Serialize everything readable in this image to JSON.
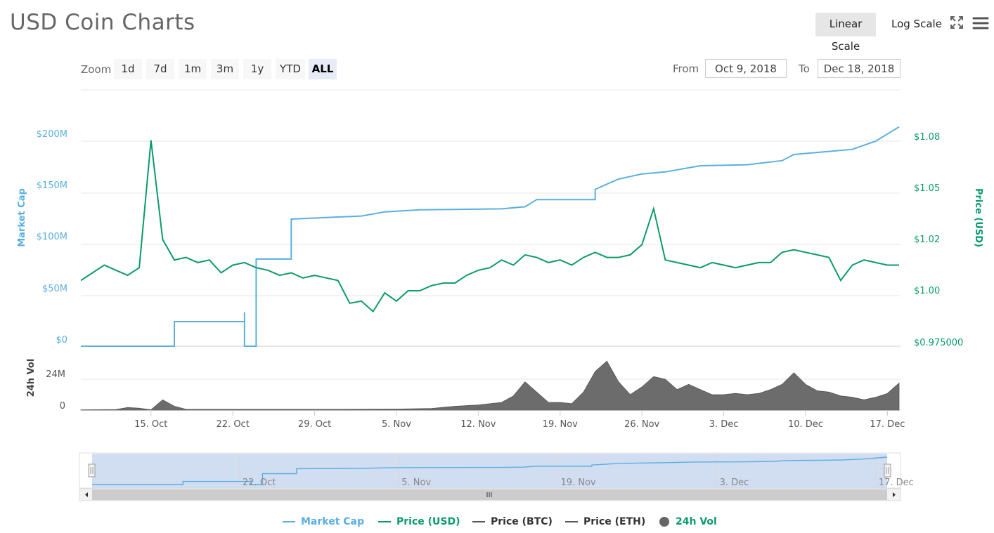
{
  "header": {
    "title": "USD Coin Charts",
    "linear_scale": "Linear Scale",
    "log_scale": "Log Scale",
    "fullscreen_icon": "fullscreen-icon",
    "menu_icon": "hamburger-menu-icon"
  },
  "zoom": {
    "label": "Zoom",
    "buttons": [
      "1d",
      "7d",
      "1m",
      "3m",
      "1y",
      "YTD",
      "ALL"
    ],
    "active": "ALL"
  },
  "range": {
    "from_label": "From",
    "from_value": "Oct 9, 2018",
    "to_label": "To",
    "to_value": "Dec 18, 2018"
  },
  "colors": {
    "market_cap": "#5aafe0",
    "price_usd": "#0b9a6d",
    "volume": "#6c6c6c",
    "price_other": "#555555",
    "navigator_fill": "#c9d7ee"
  },
  "legend": [
    {
      "name": "Market Cap",
      "color": "#5aafe0",
      "kind": "line"
    },
    {
      "name": "Price (USD)",
      "color": "#0b9a6d",
      "kind": "line"
    },
    {
      "name": "Price (BTC)",
      "color": "#555555",
      "kind": "line"
    },
    {
      "name": "Price (ETH)",
      "color": "#555555",
      "kind": "line"
    },
    {
      "name": "24h Vol",
      "color": "#666666",
      "kind": "dot"
    }
  ],
  "chart_data": {
    "type": "line",
    "x_ticks": [
      "15. Oct",
      "22. Oct",
      "29. Oct",
      "5. Nov",
      "12. Nov",
      "19. Nov",
      "26. Nov",
      "3. Dec",
      "10. Dec",
      "17. Dec"
    ],
    "navigator_ticks": [
      "22. Oct",
      "5. Nov",
      "19. Nov",
      "3. Dec",
      "17. Dec"
    ],
    "x_range": [
      "2018-10-09",
      "2018-12-18"
    ],
    "left_axis": {
      "label": "Market Cap",
      "ticks": [
        "$0",
        "$50M",
        "$100M",
        "$150M",
        "$200M"
      ],
      "ylim_millions": [
        0,
        200
      ]
    },
    "right_axis": {
      "label": "Price (USD)",
      "ticks": [
        "$0.975000",
        "$1.00",
        "$1.02",
        "$1.05",
        "$1.08"
      ],
      "ylim": [
        0.975,
        1.08
      ]
    },
    "volume_axis": {
      "label": "24h Vol",
      "ticks": [
        "0",
        "24M"
      ],
      "ylim_millions": [
        0,
        24
      ]
    },
    "series": [
      {
        "name": "Market Cap",
        "unit": "millions USD",
        "points": [
          [
            "2018-10-09",
            0
          ],
          [
            "2018-10-17",
            0
          ],
          [
            "2018-10-17",
            24
          ],
          [
            "2018-10-23",
            24
          ],
          [
            "2018-10-23",
            33
          ],
          [
            "2018-10-23",
            0
          ],
          [
            "2018-10-24",
            0
          ],
          [
            "2018-10-24",
            85
          ],
          [
            "2018-10-27",
            85
          ],
          [
            "2018-10-27",
            124
          ],
          [
            "2018-10-31",
            126
          ],
          [
            "2018-11-02",
            127
          ],
          [
            "2018-11-04",
            131
          ],
          [
            "2018-11-07",
            133
          ],
          [
            "2018-11-14",
            134
          ],
          [
            "2018-11-16",
            136
          ],
          [
            "2018-11-17",
            143
          ],
          [
            "2018-11-22",
            143
          ],
          [
            "2018-11-22",
            153
          ],
          [
            "2018-11-24",
            163
          ],
          [
            "2018-11-26",
            168
          ],
          [
            "2018-11-28",
            170
          ],
          [
            "2018-12-01",
            176
          ],
          [
            "2018-12-05",
            177
          ],
          [
            "2018-12-08",
            181
          ],
          [
            "2018-12-09",
            187
          ],
          [
            "2018-12-12",
            190
          ],
          [
            "2018-12-14",
            192
          ],
          [
            "2018-12-16",
            200
          ],
          [
            "2018-12-18",
            214
          ]
        ]
      },
      {
        "name": "Price (USD)",
        "unit": "USD",
        "points": [
          [
            "2018-10-09",
            1.004
          ],
          [
            "2018-10-10",
            1.007
          ],
          [
            "2018-10-11",
            1.01
          ],
          [
            "2018-10-12",
            1.008
          ],
          [
            "2018-10-13",
            1.006
          ],
          [
            "2018-10-14",
            1.009
          ],
          [
            "2018-10-15",
            1.078
          ],
          [
            "2018-10-16",
            1.02
          ],
          [
            "2018-10-17",
            1.012
          ],
          [
            "2018-10-18",
            1.013
          ],
          [
            "2018-10-19",
            1.011
          ],
          [
            "2018-10-20",
            1.012
          ],
          [
            "2018-10-21",
            1.007
          ],
          [
            "2018-10-22",
            1.01
          ],
          [
            "2018-10-23",
            1.011
          ],
          [
            "2018-10-24",
            1.009
          ],
          [
            "2018-10-25",
            1.008
          ],
          [
            "2018-10-26",
            1.006
          ],
          [
            "2018-10-27",
            1.007
          ],
          [
            "2018-10-28",
            1.005
          ],
          [
            "2018-10-29",
            1.006
          ],
          [
            "2018-10-30",
            1.005
          ],
          [
            "2018-10-31",
            1.004
          ],
          [
            "2018-11-01",
            0.994
          ],
          [
            "2018-11-02",
            0.995
          ],
          [
            "2018-11-03",
            0.99
          ],
          [
            "2018-11-04",
            0.999
          ],
          [
            "2018-11-05",
            0.995
          ],
          [
            "2018-11-06",
            1.0
          ],
          [
            "2018-11-07",
            1.0
          ],
          [
            "2018-11-08",
            1.002
          ],
          [
            "2018-11-09",
            1.003
          ],
          [
            "2018-11-10",
            1.003
          ],
          [
            "2018-11-11",
            1.006
          ],
          [
            "2018-11-12",
            1.008
          ],
          [
            "2018-11-13",
            1.009
          ],
          [
            "2018-11-14",
            1.012
          ],
          [
            "2018-11-15",
            1.01
          ],
          [
            "2018-11-16",
            1.014
          ],
          [
            "2018-11-17",
            1.013
          ],
          [
            "2018-11-18",
            1.011
          ],
          [
            "2018-11-19",
            1.012
          ],
          [
            "2018-11-20",
            1.01
          ],
          [
            "2018-11-21",
            1.013
          ],
          [
            "2018-11-22",
            1.015
          ],
          [
            "2018-11-23",
            1.013
          ],
          [
            "2018-11-24",
            1.013
          ],
          [
            "2018-11-25",
            1.014
          ],
          [
            "2018-11-26",
            1.018
          ],
          [
            "2018-11-27",
            1.038
          ],
          [
            "2018-11-28",
            1.012
          ],
          [
            "2018-11-29",
            1.011
          ],
          [
            "2018-11-30",
            1.01
          ],
          [
            "2018-12-01",
            1.009
          ],
          [
            "2018-12-02",
            1.011
          ],
          [
            "2018-12-03",
            1.01
          ],
          [
            "2018-12-04",
            1.009
          ],
          [
            "2018-12-05",
            1.01
          ],
          [
            "2018-12-06",
            1.011
          ],
          [
            "2018-12-07",
            1.011
          ],
          [
            "2018-12-08",
            1.015
          ],
          [
            "2018-12-09",
            1.016
          ],
          [
            "2018-12-10",
            1.015
          ],
          [
            "2018-12-11",
            1.014
          ],
          [
            "2018-12-12",
            1.013
          ],
          [
            "2018-12-13",
            1.004
          ],
          [
            "2018-12-14",
            1.01
          ],
          [
            "2018-12-15",
            1.012
          ],
          [
            "2018-12-16",
            1.011
          ],
          [
            "2018-12-17",
            1.01
          ],
          [
            "2018-12-18",
            1.01
          ]
        ]
      },
      {
        "name": "24h Vol",
        "unit": "millions USD",
        "points": [
          [
            "2018-10-09",
            0.2
          ],
          [
            "2018-10-12",
            0.5
          ],
          [
            "2018-10-13",
            2.0
          ],
          [
            "2018-10-14",
            1.5
          ],
          [
            "2018-10-15",
            0.3
          ],
          [
            "2018-10-16",
            8.0
          ],
          [
            "2018-10-17",
            3.0
          ],
          [
            "2018-10-18",
            0.6
          ],
          [
            "2018-10-24",
            0.6
          ],
          [
            "2018-10-31",
            0.6
          ],
          [
            "2018-11-05",
            0.8
          ],
          [
            "2018-11-08",
            1.3
          ],
          [
            "2018-11-10",
            3.0
          ],
          [
            "2018-11-12",
            4.0
          ],
          [
            "2018-11-14",
            6.0
          ],
          [
            "2018-11-15",
            11.0
          ],
          [
            "2018-11-16",
            22.0
          ],
          [
            "2018-11-17",
            14.0
          ],
          [
            "2018-11-18",
            6.0
          ],
          [
            "2018-11-19",
            6.0
          ],
          [
            "2018-11-20",
            5.0
          ],
          [
            "2018-11-21",
            14.0
          ],
          [
            "2018-11-22",
            30.0
          ],
          [
            "2018-11-23",
            38.0
          ],
          [
            "2018-11-24",
            22.0
          ],
          [
            "2018-11-25",
            12.0
          ],
          [
            "2018-11-26",
            18.0
          ],
          [
            "2018-11-27",
            26.0
          ],
          [
            "2018-11-28",
            24.0
          ],
          [
            "2018-11-29",
            16.0
          ],
          [
            "2018-11-30",
            20.0
          ],
          [
            "2018-12-01",
            16.0
          ],
          [
            "2018-12-02",
            12.0
          ],
          [
            "2018-12-03",
            12.0
          ],
          [
            "2018-12-04",
            13.0
          ],
          [
            "2018-12-05",
            12.0
          ],
          [
            "2018-12-06",
            13.0
          ],
          [
            "2018-12-07",
            16.0
          ],
          [
            "2018-12-08",
            20.0
          ],
          [
            "2018-12-09",
            29.0
          ],
          [
            "2018-12-10",
            20.0
          ],
          [
            "2018-12-11",
            15.0
          ],
          [
            "2018-12-12",
            14.0
          ],
          [
            "2018-12-13",
            11.0
          ],
          [
            "2018-12-14",
            10.0
          ],
          [
            "2018-12-15",
            8.0
          ],
          [
            "2018-12-16",
            10.0
          ],
          [
            "2018-12-17",
            13.0
          ],
          [
            "2018-12-18",
            21.0
          ]
        ]
      }
    ],
    "grid": true,
    "legend_position": "bottom"
  }
}
